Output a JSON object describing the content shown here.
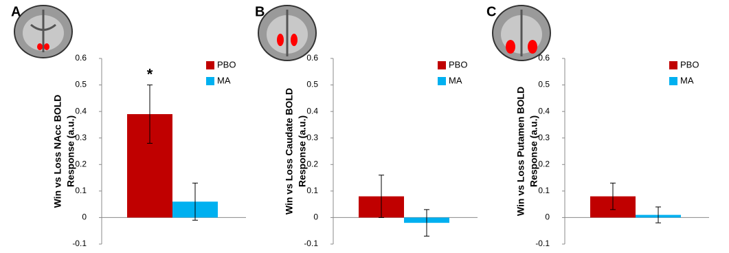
{
  "chart_data": [
    {
      "type": "bar",
      "panel_label": "A",
      "y_label": [
        "Win vs Loss NAcc BOLD",
        "Response (a.u.)"
      ],
      "categories": [
        null
      ],
      "series": [
        {
          "name": "PBO",
          "color": "#c00000",
          "values": [
            0.39
          ],
          "errors": [
            0.11
          ]
        },
        {
          "name": "MA",
          "color": "#00b0f0",
          "values": [
            0.06
          ],
          "errors": [
            0.07
          ]
        }
      ],
      "annotations": [
        "*"
      ],
      "ylim": [
        -0.1,
        0.6
      ],
      "yticks": [
        -0.1,
        0,
        0.1,
        0.2,
        0.3,
        0.4,
        0.5,
        0.6
      ],
      "legend": "upper right"
    },
    {
      "type": "bar",
      "panel_label": "B",
      "y_label": [
        "Win vs Loss Caudate BOLD",
        "Response (a.u.)"
      ],
      "categories": [
        null
      ],
      "series": [
        {
          "name": "PBO",
          "color": "#c00000",
          "values": [
            0.08
          ],
          "errors": [
            0.08
          ]
        },
        {
          "name": "MA",
          "color": "#00b0f0",
          "values": [
            -0.02
          ],
          "errors": [
            0.05
          ]
        }
      ],
      "ylim": [
        -0.1,
        0.6
      ],
      "yticks": [
        -0.1,
        0,
        0.1,
        0.2,
        0.3,
        0.4,
        0.5,
        0.6
      ],
      "legend": "upper right"
    },
    {
      "type": "bar",
      "panel_label": "C",
      "y_label": [
        "Win vs Loss Putamen BOLD",
        "Response (a.u.)"
      ],
      "categories": [
        null
      ],
      "series": [
        {
          "name": "PBO",
          "color": "#c00000",
          "values": [
            0.08
          ],
          "errors": [
            0.05
          ]
        },
        {
          "name": "MA",
          "color": "#00b0f0",
          "values": [
            0.01
          ],
          "errors": [
            0.03
          ]
        }
      ],
      "ylim": [
        -0.1,
        0.6
      ],
      "yticks": [
        -0.1,
        0,
        0.1,
        0.2,
        0.3,
        0.4,
        0.5,
        0.6
      ],
      "legend": "upper right"
    }
  ]
}
